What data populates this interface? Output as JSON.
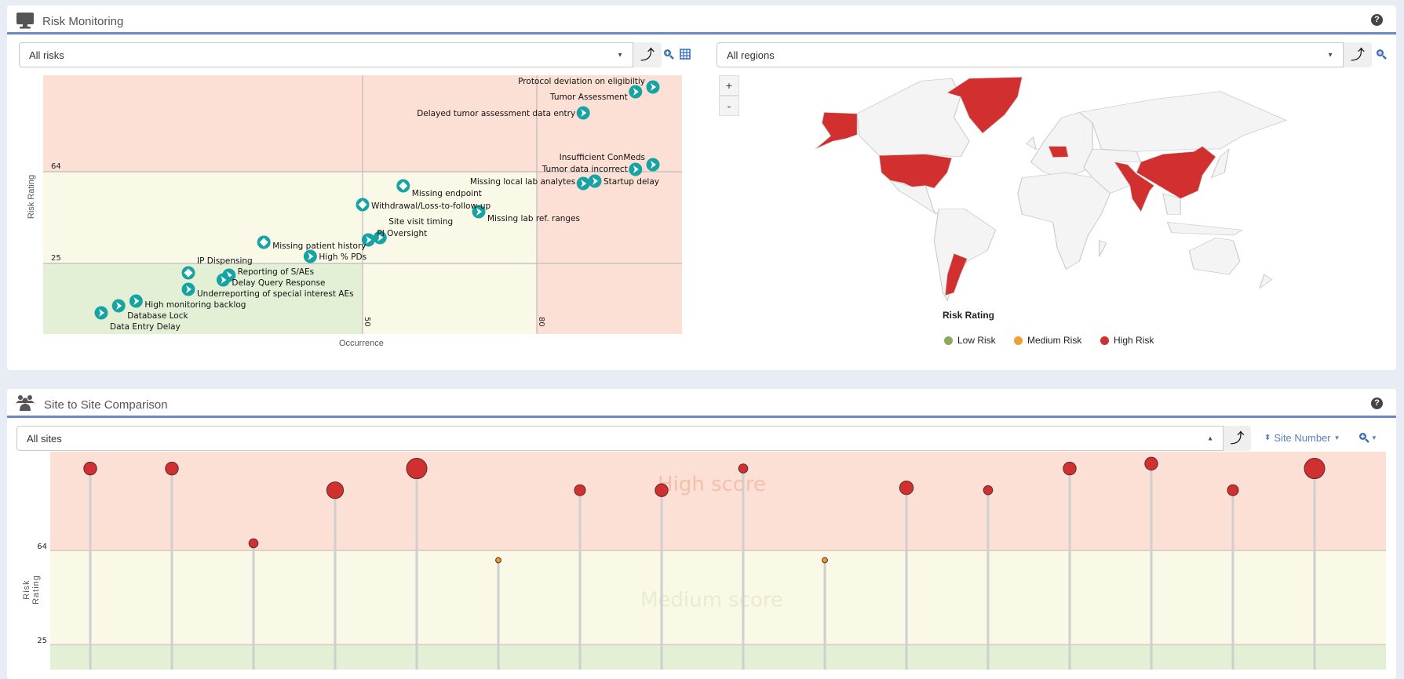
{
  "risk_monitoring": {
    "title": "Risk Monitoring",
    "help_label": "?",
    "risk_filter": {
      "value": "All risks"
    },
    "sort_glyph": "⤴",
    "region_filter": {
      "value": "All regions"
    },
    "map_zoom": {
      "plus": "+",
      "minus": "-"
    },
    "map_legend": {
      "title": "Risk Rating",
      "items": [
        {
          "label": "Low Risk",
          "color": "#8aab5a"
        },
        {
          "label": "Medium Risk",
          "color": "#eea030"
        },
        {
          "label": "High Risk",
          "color": "#d03030"
        }
      ]
    },
    "map_high_risk_countries": [
      "Alaska (USA)",
      "United States",
      "Greenland",
      "Germany",
      "India",
      "China",
      "Argentina"
    ]
  },
  "site_comparison": {
    "title": "Site to Site Comparison",
    "help_label": "?",
    "site_filter": {
      "value": "All sites"
    },
    "sort_glyph": "⤴",
    "sort_by": {
      "label": "Site Number"
    }
  },
  "chart_data": [
    {
      "type": "scatter",
      "xlabel": "Occurrence",
      "ylabel": "Risk Rating",
      "xlim": [
        -5,
        105
      ],
      "ylim": [
        -5,
        105
      ],
      "x_thresholds": [
        50,
        80
      ],
      "y_thresholds": [
        25,
        64
      ],
      "x_tick_labels": [
        "50",
        "80"
      ],
      "y_tick_labels": [
        "64",
        "25"
      ],
      "marker_color": "#17a3a3",
      "zone_colors": {
        "low": "#e3f0d6",
        "medium": "#faf8e6",
        "high": "#fde0d5"
      },
      "points": [
        {
          "label": "Protocol deviation on eligibiltiy",
          "x": 100,
          "y": 100,
          "marker": "chevron",
          "label_side": "left"
        },
        {
          "label": "Tumor Assessment",
          "x": 97,
          "y": 98,
          "marker": "chevron",
          "label_side": "left"
        },
        {
          "label": "Delayed tumor assessment data entry",
          "x": 88,
          "y": 89,
          "marker": "chevron",
          "label_side": "left"
        },
        {
          "label": "Insufficient ConMeds",
          "x": 100,
          "y": 67,
          "marker": "chevron",
          "label_side": "left"
        },
        {
          "label": "Tumor data incorrect",
          "x": 97,
          "y": 65,
          "marker": "chevron",
          "label_side": "left"
        },
        {
          "label": "Startup delay",
          "x": 90,
          "y": 60,
          "marker": "chevron",
          "label_side": "right"
        },
        {
          "label": "Missing local lab analytes",
          "x": 88,
          "y": 59,
          "marker": "chevron",
          "label_side": "left"
        },
        {
          "label": "Missing endpoint",
          "x": 57,
          "y": 58,
          "marker": "diamond",
          "label_side": "right"
        },
        {
          "label": "Withdrawal/Loss-to-follow-up",
          "x": 50,
          "y": 50,
          "marker": "diamond",
          "label_side": "right"
        },
        {
          "label": "Missing lab ref. ranges",
          "x": 70,
          "y": 47,
          "marker": "chevron",
          "label_side": "right"
        },
        {
          "label": "Site visit timing",
          "x": 53,
          "y": 36,
          "marker": "chevron",
          "label_side": "right"
        },
        {
          "label": "PI Oversight",
          "x": 51,
          "y": 35,
          "marker": "chevron",
          "label_side": "right"
        },
        {
          "label": "Missing patient history",
          "x": 33,
          "y": 34,
          "marker": "diamond",
          "label_side": "right"
        },
        {
          "label": "High % PDs",
          "x": 41,
          "y": 28,
          "marker": "chevron",
          "label_side": "right"
        },
        {
          "label": "IP Dispensing",
          "x": 20,
          "y": 21,
          "marker": "diamond",
          "label_side": "right"
        },
        {
          "label": "Reporting of S/AEs",
          "x": 27,
          "y": 20,
          "marker": "chevron",
          "label_side": "none"
        },
        {
          "label": "Delay Query Response",
          "x": 26,
          "y": 18,
          "marker": "chevron",
          "label_side": "right"
        },
        {
          "label": "Underreporting of special interest AEs",
          "x": 20,
          "y": 14,
          "marker": "chevron",
          "label_side": "right"
        },
        {
          "label": "High monitoring backlog",
          "x": 11,
          "y": 9,
          "marker": "chevron",
          "label_side": "right"
        },
        {
          "label": "Database Lock",
          "x": 8,
          "y": 7,
          "marker": "chevron",
          "label_side": "right"
        },
        {
          "label": "Data Entry Delay",
          "x": 5,
          "y": 4,
          "marker": "chevron",
          "label_side": "right"
        }
      ]
    },
    {
      "type": "scatter",
      "subtype": "lollipop",
      "ylabel": "Risk Rating",
      "ylim_top": 105,
      "y_thresholds": [
        25,
        64
      ],
      "y_tick_labels": [
        "64",
        "25"
      ],
      "zone_labels": {
        "high": "High score",
        "medium": "Medium score"
      },
      "zone_colors": {
        "low": "#e3f0d6",
        "medium": "#faf8e6",
        "high": "#fde0d5"
      },
      "point_colors": {
        "high": "#d03030",
        "medium": "#e89a2a"
      },
      "sites": [
        {
          "value": 98,
          "size": 3,
          "level": "high"
        },
        {
          "value": 98,
          "size": 3,
          "level": "high"
        },
        {
          "value": 67,
          "size": 2,
          "level": "high"
        },
        {
          "value": 89,
          "size": 4,
          "level": "high"
        },
        {
          "value": 98,
          "size": 5,
          "level": "high"
        },
        {
          "value": 60,
          "size": 1,
          "level": "medium"
        },
        {
          "value": 89,
          "size": 2.5,
          "level": "high"
        },
        {
          "value": 89,
          "size": 3,
          "level": "high"
        },
        {
          "value": 98,
          "size": 2,
          "level": "high"
        },
        {
          "value": 60,
          "size": 1,
          "level": "medium"
        },
        {
          "value": 90,
          "size": 3.2,
          "level": "high"
        },
        {
          "value": 89,
          "size": 2,
          "level": "high"
        },
        {
          "value": 98,
          "size": 3,
          "level": "high"
        },
        {
          "value": 100,
          "size": 3,
          "level": "high"
        },
        {
          "value": 89,
          "size": 2.5,
          "level": "high"
        },
        {
          "value": 98,
          "size": 5,
          "level": "high"
        }
      ]
    }
  ]
}
